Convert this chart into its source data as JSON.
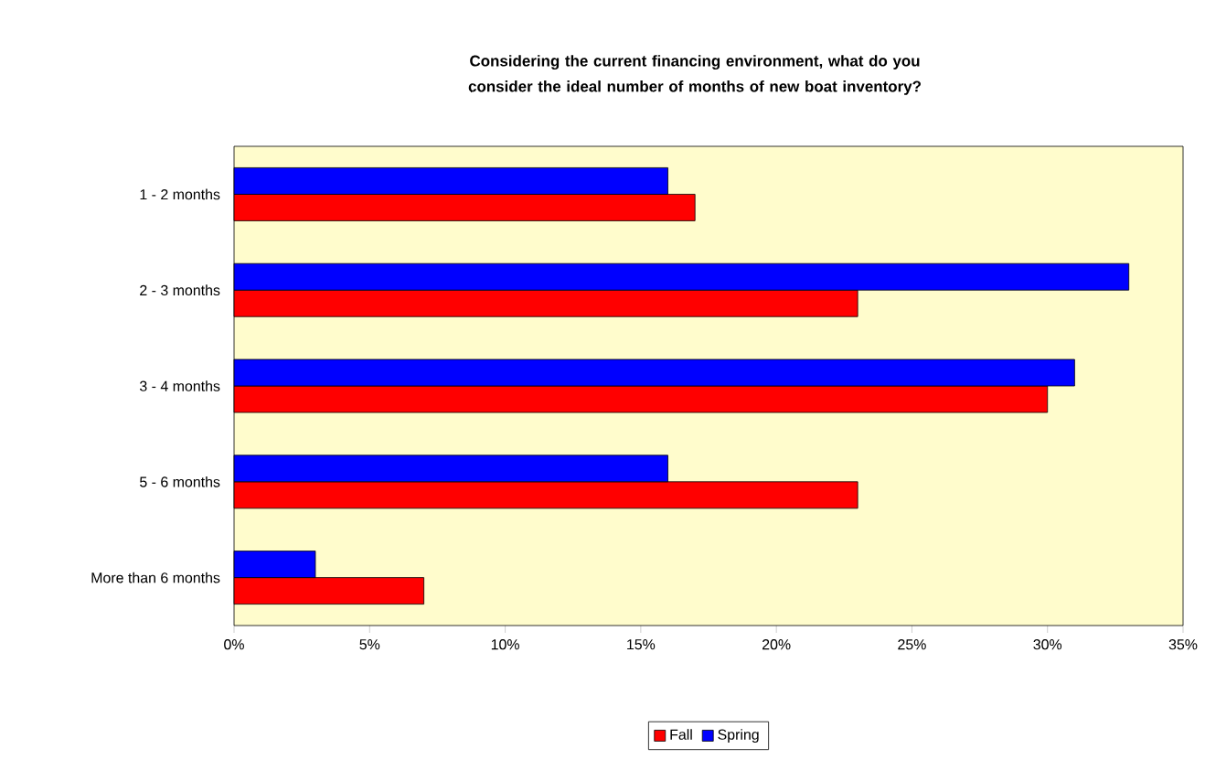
{
  "chart_data": {
    "type": "bar",
    "orientation": "horizontal",
    "title": "Considering the current financing environment, what do you consider the ideal number of months of new boat inventory?",
    "categories": [
      "1 - 2 months",
      "2 - 3 months",
      "3 - 4 months",
      "5 - 6 months",
      "More than 6 months"
    ],
    "series": [
      {
        "name": "Fall",
        "color": "#ff0000",
        "values": [
          17,
          23,
          30,
          23,
          7
        ]
      },
      {
        "name": "Spring",
        "color": "#0000ff",
        "values": [
          16,
          33,
          31,
          16,
          3
        ]
      }
    ],
    "xlim": [
      0,
      35
    ],
    "xticks": [
      {
        "value": 0,
        "label": "0%"
      },
      {
        "value": 5,
        "label": "5%"
      },
      {
        "value": 10,
        "label": "10%"
      },
      {
        "value": 15,
        "label": "15%"
      },
      {
        "value": 20,
        "label": "20%"
      },
      {
        "value": 25,
        "label": "25%"
      },
      {
        "value": 30,
        "label": "30%"
      },
      {
        "value": 35,
        "label": "35%"
      }
    ],
    "legend": "bottom",
    "grid": false
  }
}
